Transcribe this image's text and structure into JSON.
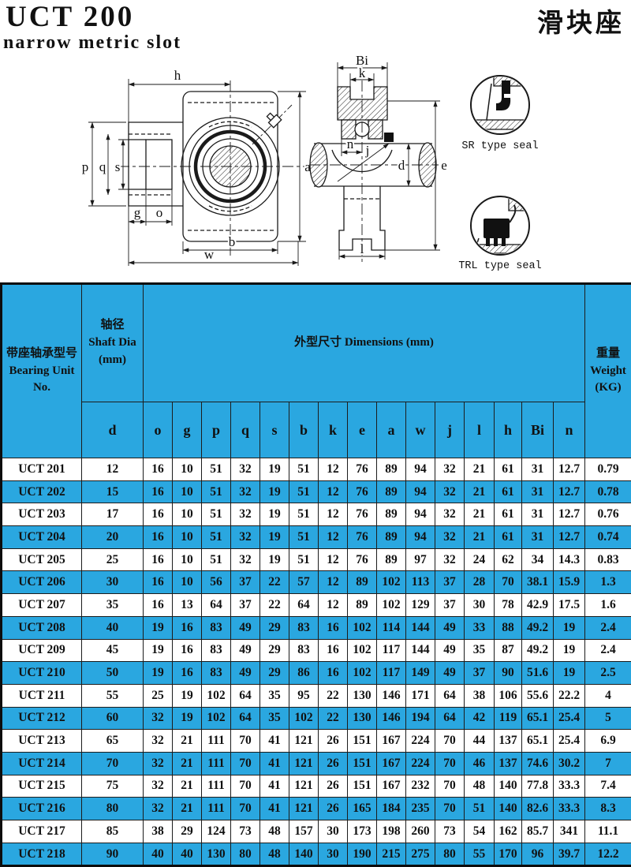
{
  "colors": {
    "accent_blue": "#2aa7e0",
    "line_black": "#1a1a1a"
  },
  "header": {
    "title": "UCT 200",
    "title_cn": "滑块座",
    "subtitle": "narrow metric slot"
  },
  "drawing": {
    "labels": {
      "h": "h",
      "p": "p",
      "q": "q",
      "s": "s",
      "a": "a",
      "g": "g",
      "o": "o",
      "b": "b",
      "w": "w",
      "Bi": "Bi",
      "k": "k",
      "n": "n",
      "j": "j",
      "d": "d",
      "e": "e",
      "l": "l"
    },
    "seal_captions": {
      "sr": "SR type seal",
      "trl": "TRL type seal"
    }
  },
  "table": {
    "group_headers": {
      "bearing_unit": [
        "带座轴承型号",
        "Bearing Unit",
        "No."
      ],
      "shaft_dia": [
        "轴径",
        "Shaft Dia",
        "(mm)"
      ],
      "dimensions": "外型尺寸 Dimensions (mm)",
      "weight": [
        "重量",
        "Weight",
        "(KG)"
      ]
    },
    "columns": [
      "d",
      "o",
      "g",
      "p",
      "q",
      "s",
      "b",
      "k",
      "e",
      "a",
      "w",
      "j",
      "l",
      "h",
      "Bi",
      "n"
    ],
    "rows": [
      {
        "no": "UCT 201",
        "dims": [
          "12",
          "16",
          "10",
          "51",
          "32",
          "19",
          "51",
          "12",
          "76",
          "89",
          "94",
          "32",
          "21",
          "61",
          "31",
          "12.7"
        ],
        "weight": "0.79"
      },
      {
        "no": "UCT 202",
        "dims": [
          "15",
          "16",
          "10",
          "51",
          "32",
          "19",
          "51",
          "12",
          "76",
          "89",
          "94",
          "32",
          "21",
          "61",
          "31",
          "12.7"
        ],
        "weight": "0.78"
      },
      {
        "no": "UCT 203",
        "dims": [
          "17",
          "16",
          "10",
          "51",
          "32",
          "19",
          "51",
          "12",
          "76",
          "89",
          "94",
          "32",
          "21",
          "61",
          "31",
          "12.7"
        ],
        "weight": "0.76"
      },
      {
        "no": "UCT 204",
        "dims": [
          "20",
          "16",
          "10",
          "51",
          "32",
          "19",
          "51",
          "12",
          "76",
          "89",
          "94",
          "32",
          "21",
          "61",
          "31",
          "12.7"
        ],
        "weight": "0.74"
      },
      {
        "no": "UCT 205",
        "dims": [
          "25",
          "16",
          "10",
          "51",
          "32",
          "19",
          "51",
          "12",
          "76",
          "89",
          "97",
          "32",
          "24",
          "62",
          "34",
          "14.3"
        ],
        "weight": "0.83"
      },
      {
        "no": "UCT 206",
        "dims": [
          "30",
          "16",
          "10",
          "56",
          "37",
          "22",
          "57",
          "12",
          "89",
          "102",
          "113",
          "37",
          "28",
          "70",
          "38.1",
          "15.9"
        ],
        "weight": "1.3"
      },
      {
        "no": "UCT 207",
        "dims": [
          "35",
          "16",
          "13",
          "64",
          "37",
          "22",
          "64",
          "12",
          "89",
          "102",
          "129",
          "37",
          "30",
          "78",
          "42.9",
          "17.5"
        ],
        "weight": "1.6"
      },
      {
        "no": "UCT 208",
        "dims": [
          "40",
          "19",
          "16",
          "83",
          "49",
          "29",
          "83",
          "16",
          "102",
          "114",
          "144",
          "49",
          "33",
          "88",
          "49.2",
          "19"
        ],
        "weight": "2.4"
      },
      {
        "no": "UCT 209",
        "dims": [
          "45",
          "19",
          "16",
          "83",
          "49",
          "29",
          "83",
          "16",
          "102",
          "117",
          "144",
          "49",
          "35",
          "87",
          "49.2",
          "19"
        ],
        "weight": "2.4"
      },
      {
        "no": "UCT 210",
        "dims": [
          "50",
          "19",
          "16",
          "83",
          "49",
          "29",
          "86",
          "16",
          "102",
          "117",
          "149",
          "49",
          "37",
          "90",
          "51.6",
          "19"
        ],
        "weight": "2.5"
      },
      {
        "no": "UCT 211",
        "dims": [
          "55",
          "25",
          "19",
          "102",
          "64",
          "35",
          "95",
          "22",
          "130",
          "146",
          "171",
          "64",
          "38",
          "106",
          "55.6",
          "22.2"
        ],
        "weight": "4"
      },
      {
        "no": "UCT 212",
        "dims": [
          "60",
          "32",
          "19",
          "102",
          "64",
          "35",
          "102",
          "22",
          "130",
          "146",
          "194",
          "64",
          "42",
          "119",
          "65.1",
          "25.4"
        ],
        "weight": "5"
      },
      {
        "no": "UCT 213",
        "dims": [
          "65",
          "32",
          "21",
          "111",
          "70",
          "41",
          "121",
          "26",
          "151",
          "167",
          "224",
          "70",
          "44",
          "137",
          "65.1",
          "25.4"
        ],
        "weight": "6.9"
      },
      {
        "no": "UCT 214",
        "dims": [
          "70",
          "32",
          "21",
          "111",
          "70",
          "41",
          "121",
          "26",
          "151",
          "167",
          "224",
          "70",
          "46",
          "137",
          "74.6",
          "30.2"
        ],
        "weight": "7"
      },
      {
        "no": "UCT 215",
        "dims": [
          "75",
          "32",
          "21",
          "111",
          "70",
          "41",
          "121",
          "26",
          "151",
          "167",
          "232",
          "70",
          "48",
          "140",
          "77.8",
          "33.3"
        ],
        "weight": "7.4"
      },
      {
        "no": "UCT 216",
        "dims": [
          "80",
          "32",
          "21",
          "111",
          "70",
          "41",
          "121",
          "26",
          "165",
          "184",
          "235",
          "70",
          "51",
          "140",
          "82.6",
          "33.3"
        ],
        "weight": "8.3"
      },
      {
        "no": "UCT 217",
        "dims": [
          "85",
          "38",
          "29",
          "124",
          "73",
          "48",
          "157",
          "30",
          "173",
          "198",
          "260",
          "73",
          "54",
          "162",
          "85.7",
          "341"
        ],
        "weight": "11.1"
      },
      {
        "no": "UCT 218",
        "dims": [
          "90",
          "40",
          "40",
          "130",
          "80",
          "48",
          "140",
          "30",
          "190",
          "215",
          "275",
          "80",
          "55",
          "170",
          "96",
          "39.7"
        ],
        "weight": "12.2"
      }
    ]
  }
}
